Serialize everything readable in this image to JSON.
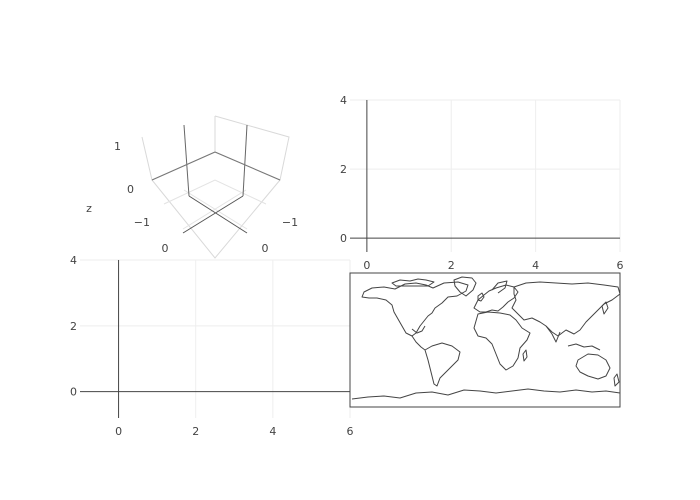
{
  "chart_data": [
    {
      "type": "scatter3d",
      "zlabel": "z",
      "x_ticks": [
        "0",
        "−1"
      ],
      "y_ticks": [
        "0",
        "−1"
      ],
      "z_ticks": [
        "1",
        "0",
        "−1"
      ],
      "series": []
    },
    {
      "type": "scatter",
      "xlim": [
        -0.4,
        6
      ],
      "ylim": [
        -0.4,
        4
      ],
      "x_ticks": [
        0,
        2,
        4,
        6
      ],
      "y_ticks": [
        0,
        2,
        4
      ],
      "grid": true,
      "series": []
    },
    {
      "type": "scatter",
      "xlim": [
        -1,
        6
      ],
      "ylim": [
        -0.8,
        4
      ],
      "x_ticks": [
        0,
        2,
        4,
        6
      ],
      "y_ticks": [
        0,
        2,
        4
      ],
      "grid": true,
      "series": []
    },
    {
      "type": "geo",
      "projection": "equirectangular",
      "features": [
        "coastlines",
        "frame"
      ],
      "series": []
    }
  ],
  "colors": {
    "axis_line": "#444444",
    "grid": "#eeeeee",
    "tick_label": "#444444",
    "coastline": "#444444",
    "scene_grid": "#d9d9d9",
    "scene_grid_dark": "#666666"
  }
}
